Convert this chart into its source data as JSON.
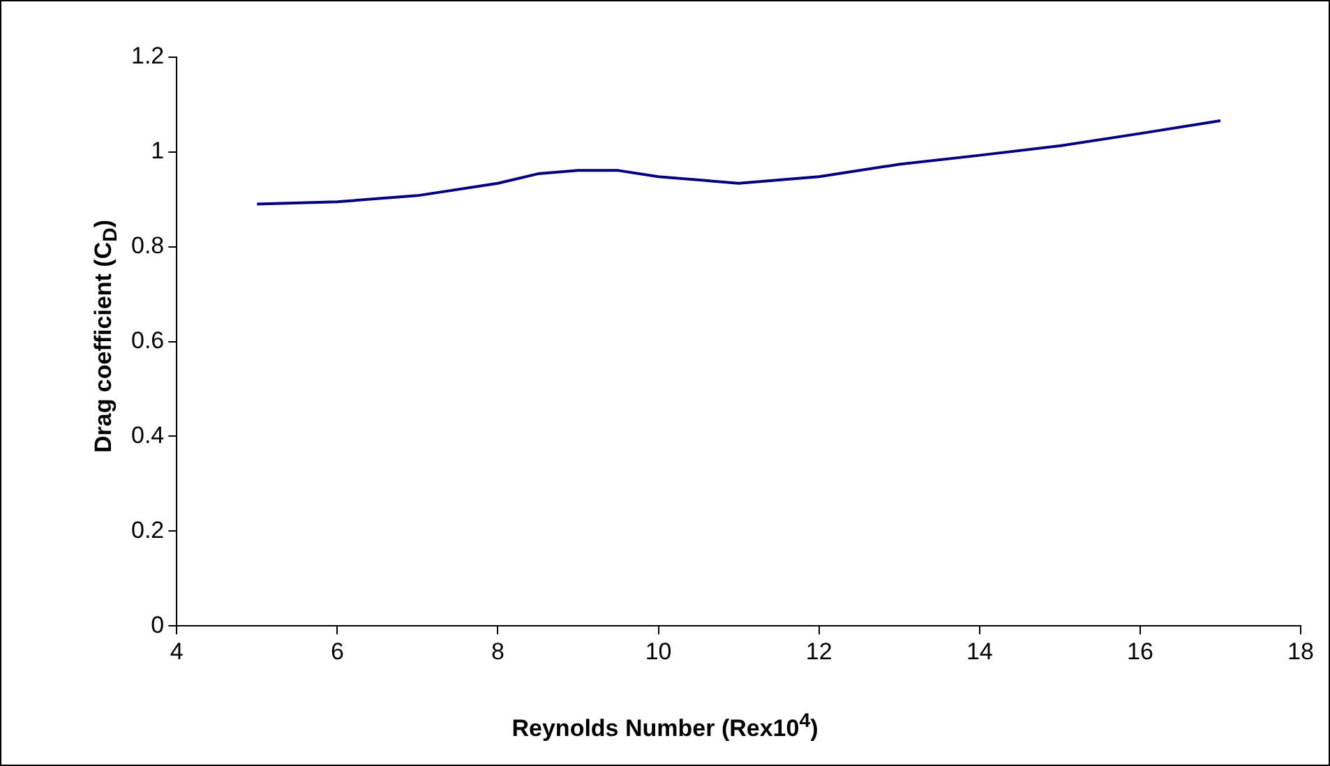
{
  "chart_data": {
    "type": "line",
    "xlabel": "Reynolds Number (Rex10$^{4}$)",
    "ylabel": "Drag coefficient (C$_{D}$)",
    "series": [
      {
        "color": "#000080",
        "x": [
          5,
          6,
          7,
          8,
          8.5,
          9,
          9.5,
          10,
          11,
          12,
          13,
          14,
          15,
          16,
          17
        ],
        "values": [
          0.89,
          0.895,
          0.908,
          0.934,
          0.954,
          0.961,
          0.961,
          0.948,
          0.934,
          0.948,
          0.974,
          0.993,
          1.013,
          1.039,
          1.066
        ]
      }
    ],
    "xlim": [
      4,
      18
    ],
    "xticks": [
      4,
      6,
      8,
      10,
      12,
      14,
      16,
      18
    ],
    "ylim": [
      0,
      1.2
    ],
    "yticks": [
      0,
      0.2,
      0.4,
      0.6,
      0.8,
      1,
      1.2
    ],
    "grid": false,
    "legend": false,
    "marker": "none",
    "line_style": "solid"
  }
}
